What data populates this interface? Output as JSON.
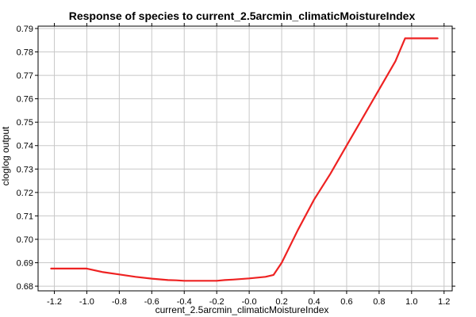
{
  "chart_data": {
    "type": "line",
    "title": "Response of species to current_2.5arcmin_climaticMoistureIndex",
    "xlabel": "current_2.5arcmin_climaticMoistureIndex",
    "ylabel": "cloglog output",
    "xlim": [
      -1.3,
      1.25
    ],
    "ylim": [
      0.678,
      0.791
    ],
    "xticks": [
      -1.2,
      -1.0,
      -0.8,
      -0.6,
      -0.4,
      -0.2,
      0.0,
      0.2,
      0.4,
      0.6,
      0.8,
      1.0,
      1.2
    ],
    "xtick_labels": [
      "-1.2",
      "-1.0",
      "-0.8",
      "-0.6",
      "-0.4",
      "-0.2",
      "-0.0",
      "0.2",
      "0.4",
      "0.6",
      "0.8",
      "1.0",
      "1.2"
    ],
    "yticks": [
      0.68,
      0.69,
      0.7,
      0.71,
      0.72,
      0.73,
      0.74,
      0.75,
      0.76,
      0.77,
      0.78,
      0.79
    ],
    "ytick_labels": [
      "0.68",
      "0.69",
      "0.70",
      "0.71",
      "0.72",
      "0.73",
      "0.74",
      "0.75",
      "0.76",
      "0.77",
      "0.78",
      "0.79"
    ],
    "grid": true,
    "series": [
      {
        "color": "#ee2222",
        "x": [
          -1.22,
          -1.0,
          -0.9,
          -0.8,
          -0.7,
          -0.6,
          -0.5,
          -0.45,
          -0.4,
          -0.3,
          -0.2,
          -0.15,
          -0.1,
          0.0,
          0.1,
          0.15,
          0.2,
          0.3,
          0.4,
          0.5,
          0.6,
          0.7,
          0.8,
          0.9,
          0.96,
          1.16
        ],
        "y": [
          0.6875,
          0.6875,
          0.686,
          0.685,
          0.684,
          0.6832,
          0.6826,
          0.6825,
          0.6823,
          0.6823,
          0.6823,
          0.6826,
          0.6828,
          0.6833,
          0.684,
          0.6848,
          0.69,
          0.704,
          0.717,
          0.728,
          0.74,
          0.752,
          0.764,
          0.776,
          0.7858,
          0.7858
        ]
      }
    ]
  }
}
